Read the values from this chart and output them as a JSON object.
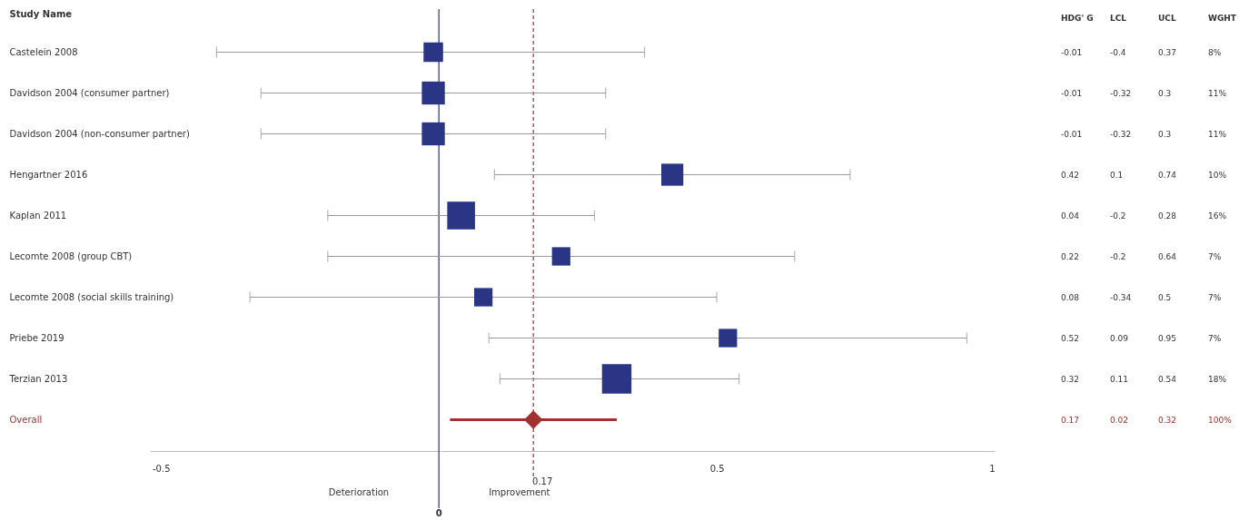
{
  "chart_data": {
    "type": "bubble",
    "orientation": "horizontal",
    "ylabel": "Study Name",
    "categories": [
      "Castelein 2008",
      "Davidson 2004 (consumer partner)",
      "Davidson 2004 (non-consumer partner)",
      "Hengartner 2016",
      "Kaplan 2011",
      "Lecomte 2008 (group CBT)",
      "Lecomte 2008 (social skills training)",
      "Priebe 2019",
      "Terzian 2013",
      "Overall"
    ],
    "series": [
      {
        "color": "#2b3585",
        "marker": "square",
        "values": [
          -0.01,
          -0.01,
          -0.01,
          0.42,
          0.04,
          0.22,
          0.08,
          0.52,
          0.32,
          null
        ],
        "errors": [
          [
            -0.4,
            0.37
          ],
          [
            -0.32,
            0.3
          ],
          [
            -0.32,
            0.3
          ],
          [
            0.1,
            0.74
          ],
          [
            -0.2,
            0.28
          ],
          [
            -0.2,
            0.64
          ],
          [
            -0.34,
            0.5
          ],
          [
            0.09,
            0.95
          ],
          [
            0.11,
            0.54
          ],
          null
        ],
        "sizes": [
          0.44,
          0.61,
          0.61,
          0.56,
          0.89,
          0.39,
          0.39,
          0.39,
          1,
          null
        ]
      },
      {
        "color": "#a33030",
        "marker": "diamond",
        "values": [
          null,
          null,
          null,
          null,
          null,
          null,
          null,
          null,
          null,
          0.17
        ],
        "errors": [
          null,
          null,
          null,
          null,
          null,
          null,
          null,
          null,
          null,
          [
            0.02,
            0.32
          ]
        ]
      }
    ],
    "xlim": [
      -0.52,
      1.0
    ],
    "xticks": [
      {
        "value": -0.5,
        "label": "-0.5"
      },
      {
        "value": 0.5,
        "label": "0.5"
      },
      {
        "value": 1,
        "label": "1"
      }
    ],
    "ref_lines": [
      {
        "axis": "x",
        "value": 0,
        "label": "0",
        "color": "#2b3585",
        "line_style": "solid"
      },
      {
        "axis": "x",
        "value": 0.17,
        "label": "0.17",
        "color": "#a33030",
        "line_style": "dashed"
      }
    ],
    "annotations": [
      "Deterioration",
      "Improvement",
      "HDG' G",
      "LCL",
      "UCL",
      "WGHT",
      "-0.01",
      "-0.4",
      "0.37",
      "8%",
      "-0.01",
      "-0.32",
      "0.3",
      "11%",
      "-0.01",
      "-0.32",
      "0.3",
      "11%",
      "0.42",
      "0.1",
      "0.74",
      "10%",
      "0.04",
      "-0.2",
      "0.28",
      "16%",
      "0.22",
      "-0.2",
      "0.64",
      "7%",
      "0.08",
      "-0.34",
      "0.5",
      "7%",
      "0.52",
      "0.09",
      "0.95",
      "7%",
      "0.32",
      "0.11",
      "0.54",
      "18%",
      "0.17",
      "0.02",
      "0.32",
      "100%"
    ],
    "grid": false
  }
}
